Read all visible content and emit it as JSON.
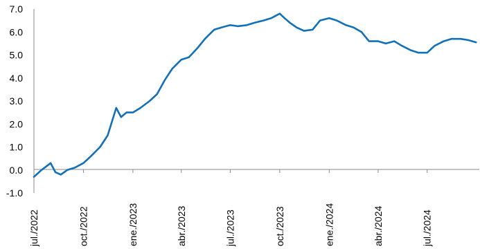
{
  "chart_data": {
    "type": "line",
    "title": "",
    "xlabel": "",
    "ylabel": "",
    "ylim": [
      -1.0,
      7.0
    ],
    "y_ticks": [
      "7.0",
      "6.0",
      "5.0",
      "4.0",
      "3.0",
      "2.0",
      "1.0",
      "0.0",
      "-1.0"
    ],
    "x_ticks": [
      "jul./2022",
      "oct./2022",
      "ene./2023",
      "abr./2023",
      "jul./2023",
      "oct./2023",
      "ene./2024",
      "abr./2024",
      "jul./2024"
    ],
    "grid": false,
    "legend": "none",
    "series": [
      {
        "color": "#1070b8",
        "x": [
          "2022-07-01",
          "2022-07-15",
          "2022-08-01",
          "2022-08-10",
          "2022-08-20",
          "2022-09-01",
          "2022-09-15",
          "2022-10-01",
          "2022-10-15",
          "2022-11-01",
          "2022-11-15",
          "2022-12-01",
          "2022-12-10",
          "2022-12-20",
          "2023-01-01",
          "2023-01-15",
          "2023-02-01",
          "2023-02-15",
          "2023-03-01",
          "2023-03-15",
          "2023-04-01",
          "2023-04-15",
          "2023-05-01",
          "2023-05-15",
          "2023-06-01",
          "2023-06-15",
          "2023-07-01",
          "2023-07-15",
          "2023-08-01",
          "2023-08-15",
          "2023-09-01",
          "2023-09-15",
          "2023-10-01",
          "2023-10-10",
          "2023-10-20",
          "2023-11-01",
          "2023-11-15",
          "2023-12-01",
          "2023-12-15",
          "2024-01-01",
          "2024-01-15",
          "2024-02-01",
          "2024-02-15",
          "2024-03-01",
          "2024-03-15",
          "2024-04-01",
          "2024-04-15",
          "2024-05-01",
          "2024-05-15",
          "2024-06-01",
          "2024-06-15",
          "2024-07-01",
          "2024-07-15",
          "2024-08-01",
          "2024-08-15",
          "2024-09-01",
          "2024-09-15",
          "2024-09-30"
        ],
        "values": [
          -0.3,
          0.0,
          0.3,
          -0.1,
          -0.2,
          0.0,
          0.1,
          0.3,
          0.6,
          1.0,
          1.5,
          2.7,
          2.3,
          2.5,
          2.5,
          2.7,
          3.0,
          3.3,
          3.9,
          4.4,
          4.8,
          4.9,
          5.3,
          5.7,
          6.1,
          6.2,
          6.3,
          6.25,
          6.3,
          6.4,
          6.5,
          6.6,
          6.8,
          6.6,
          6.4,
          6.2,
          6.05,
          6.1,
          6.5,
          6.6,
          6.5,
          6.3,
          6.2,
          6.0,
          5.6,
          5.6,
          5.5,
          5.6,
          5.4,
          5.2,
          5.1,
          5.1,
          5.4,
          5.6,
          5.7,
          5.7,
          5.65,
          5.55
        ]
      }
    ]
  }
}
